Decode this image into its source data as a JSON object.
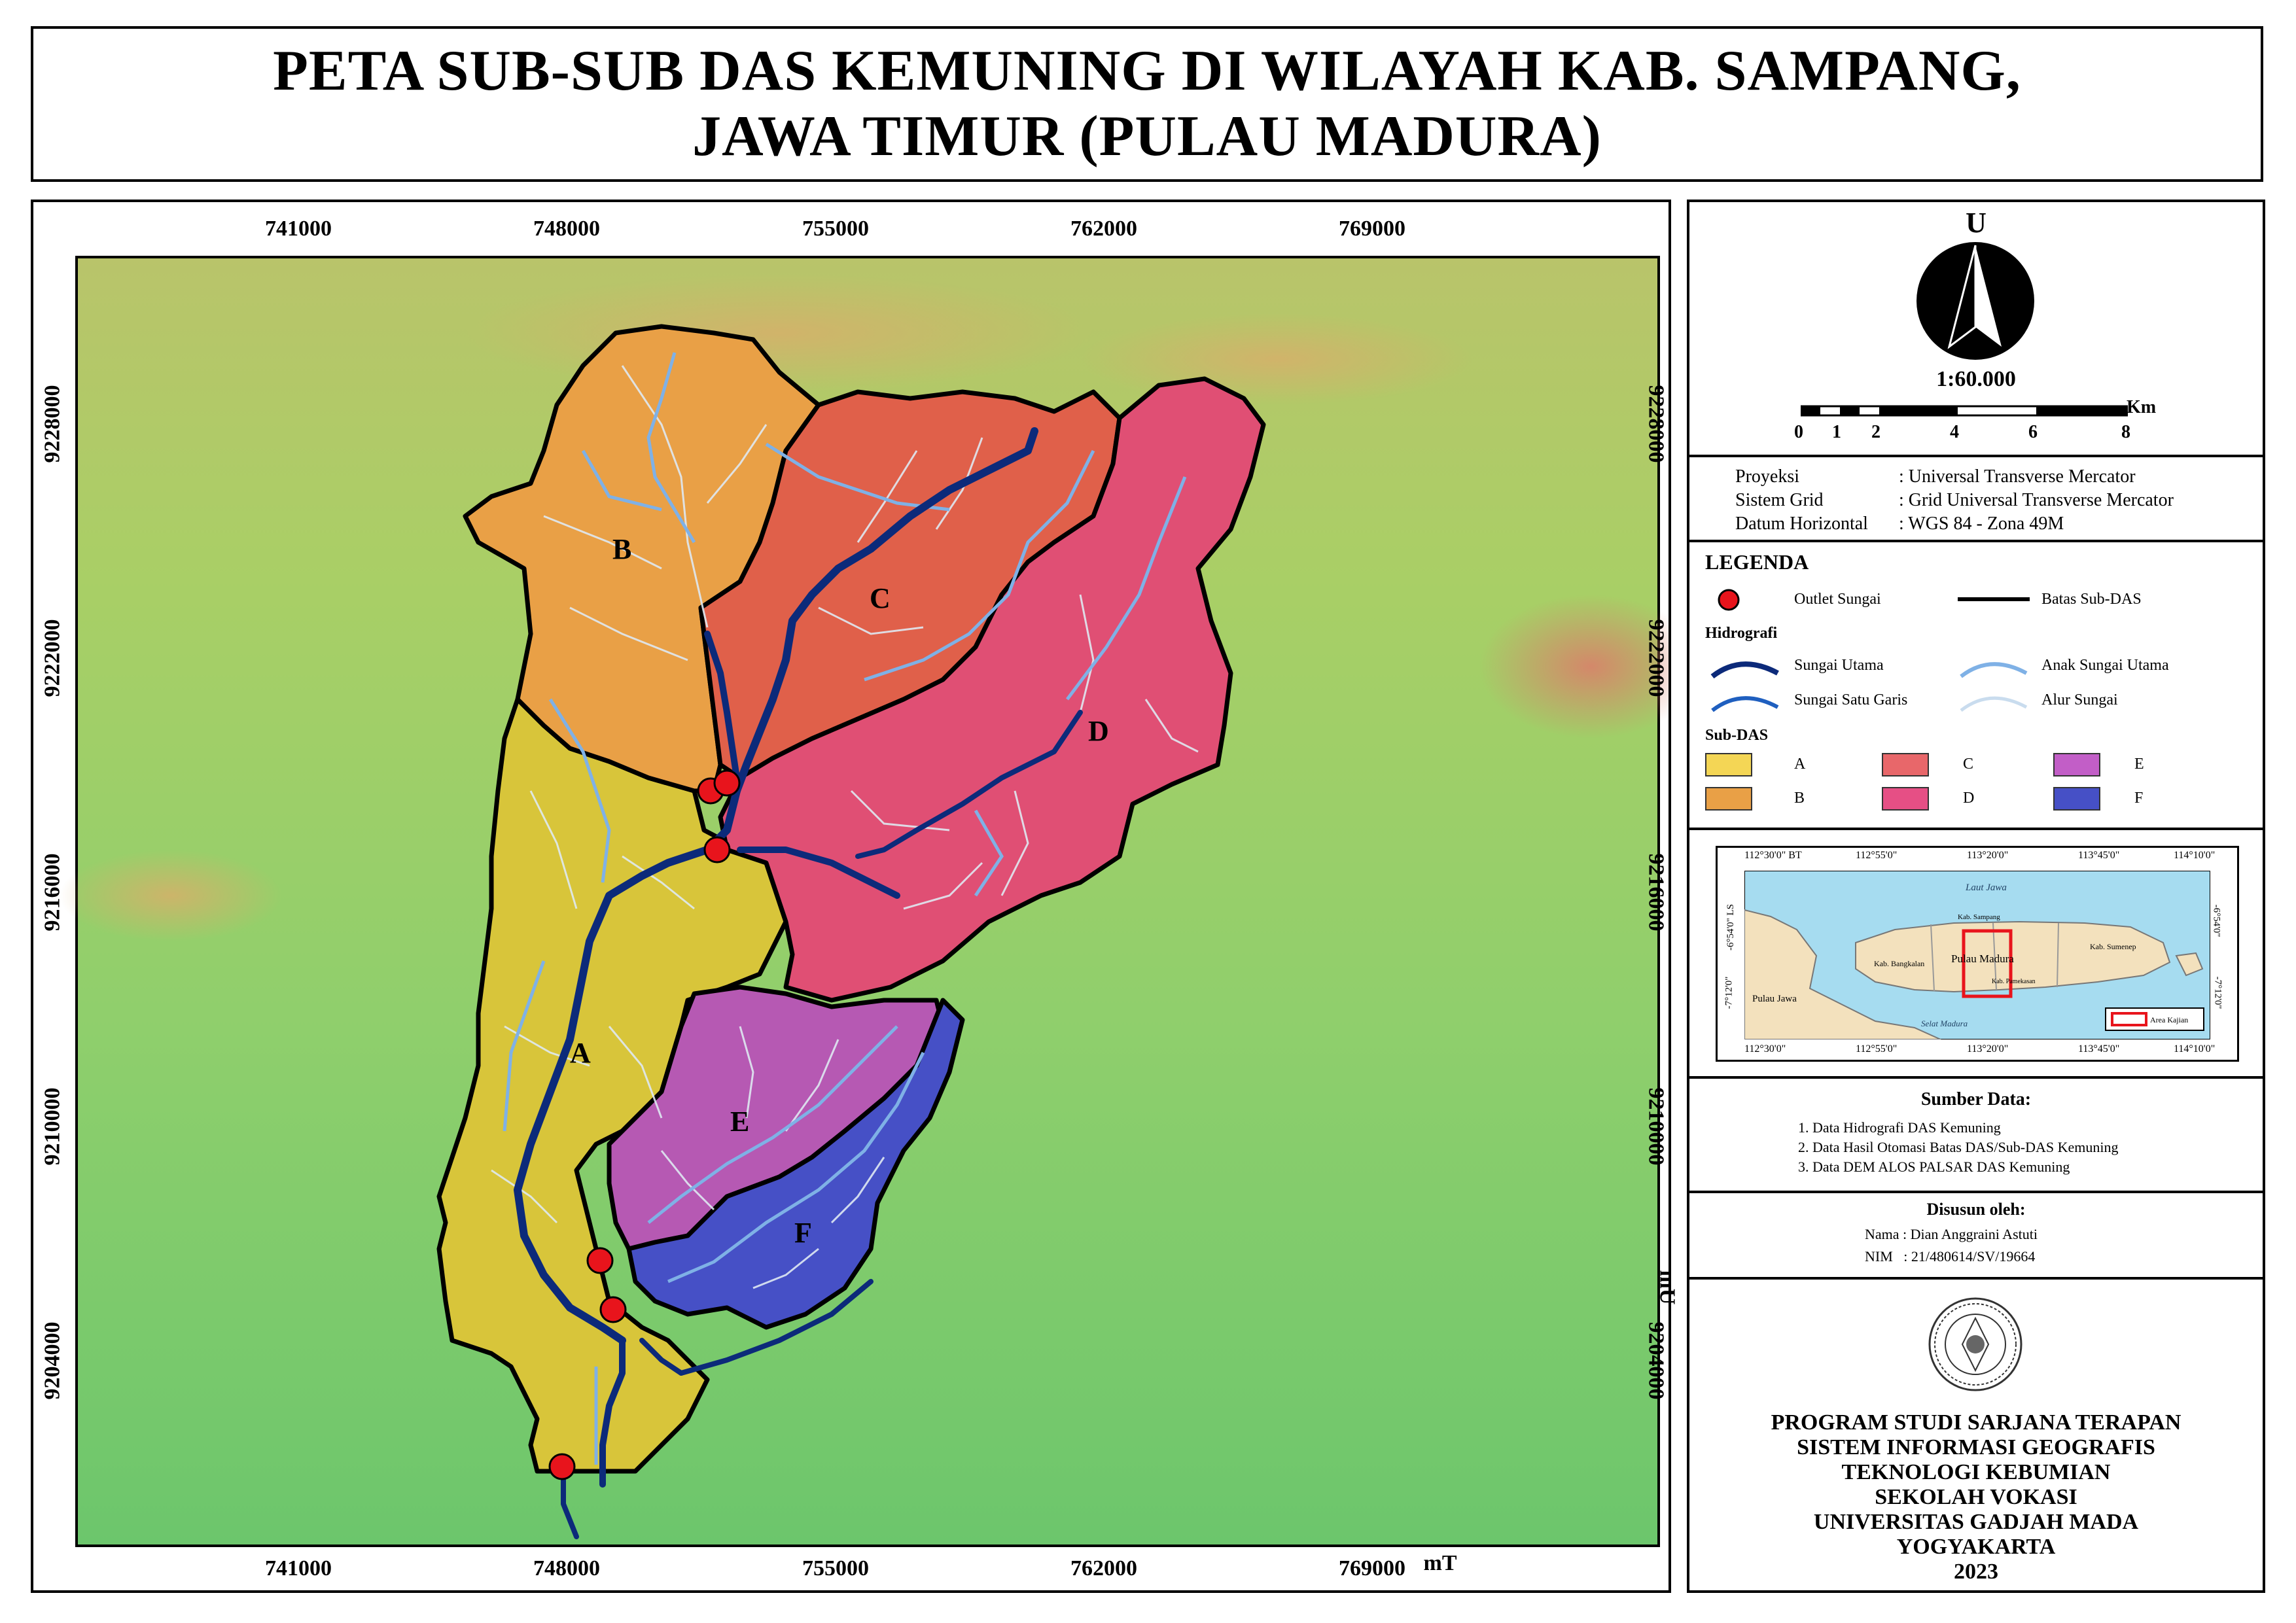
{
  "title": {
    "line1": "PETA SUB-SUB DAS KEMUNING DI WILAYAH KAB. SAMPANG,",
    "line2": "JAWA TIMUR (PULAU MADURA)"
  },
  "grid": {
    "x_ticks": [
      "741000",
      "748000",
      "755000",
      "762000",
      "769000"
    ],
    "x_unit": "mT",
    "y_ticks": [
      "9228000",
      "9222000",
      "9216000",
      "9210000",
      "9204000"
    ],
    "y_unit": "mU"
  },
  "subdas_labels": [
    "A",
    "B",
    "C",
    "D",
    "E",
    "F"
  ],
  "colors": {
    "A": "#d8c53a",
    "B": "#e9a046",
    "C": "#e0604a",
    "D": "#e04f74",
    "E": "#b659b3",
    "F": "#4650c6",
    "outlet": "#e8141c",
    "main_river": "#0c2a7a"
  },
  "compass": {
    "north_label": "U",
    "scale_text": "1:60.000"
  },
  "scalebar": {
    "unit": "Km",
    "labels": [
      "0",
      "1",
      "2",
      "4",
      "6",
      "8"
    ]
  },
  "projection": {
    "rows": [
      {
        "key": "Proyeksi",
        "value": ": Universal Transverse Mercator"
      },
      {
        "key": "Sistem Grid",
        "value": ": Grid Universal Transverse Mercator"
      },
      {
        "key": "Datum Horizontal",
        "value": ": WGS 84 - Zona 49M"
      }
    ]
  },
  "legend": {
    "title": "LEGENDA",
    "outlet": "Outlet Sungai",
    "boundary": "Batas Sub-DAS",
    "hydro_title": "Hidrografi",
    "hydro": [
      "Sungai Utama",
      "Anak Sungai Utama",
      "Sungai Satu Garis",
      "Alur Sungai"
    ],
    "subdas_title": "Sub-DAS",
    "subdas": [
      "A",
      "C",
      "E",
      "B",
      "D",
      "F"
    ]
  },
  "inset": {
    "top_ticks": [
      "112°30'0\" BT",
      "112°55'0\"",
      "113°20'0\"",
      "113°45'0\"",
      "114°10'0\""
    ],
    "bottom_ticks": [
      "112°30'0\"",
      "112°55'0\"",
      "113°20'0\"",
      "113°45'0\"",
      "114°10'0\""
    ],
    "left_ticks": [
      "-6°54'0\" LS",
      "-7°12'0\""
    ],
    "right_ticks": [
      "-6°54'0\"",
      "-7°12'0\""
    ],
    "labels": [
      "Laut Jawa",
      "Kab. Sampang",
      "Pulau Madura",
      "Kab. Sumenep",
      "Kab. Bangkalan",
      "Kab. Pamekasan",
      "Pulau Jawa",
      "Selat Madura"
    ],
    "legend_label": "Area Kajian"
  },
  "sources": {
    "title": "Sumber Data:",
    "items": [
      "1. Data Hidrografi DAS Kemuning",
      "2. Data Hasil Otomasi Batas DAS/Sub-DAS Kemuning",
      "3. Data DEM ALOS PALSAR DAS Kemuning"
    ]
  },
  "author": {
    "title": "Disusun oleh:",
    "name": "Nama : Dian Anggraini Astuti",
    "nim": "NIM   : 21/480614/SV/19664"
  },
  "institution": {
    "lines": [
      "PROGRAM STUDI SARJANA TERAPAN",
      "SISTEM INFORMASI GEOGRAFIS",
      "TEKNOLOGI KEBUMIAN",
      "SEKOLAH VOKASI",
      "UNIVERSITAS GADJAH MADA",
      "YOGYAKARTA",
      "2023"
    ]
  }
}
